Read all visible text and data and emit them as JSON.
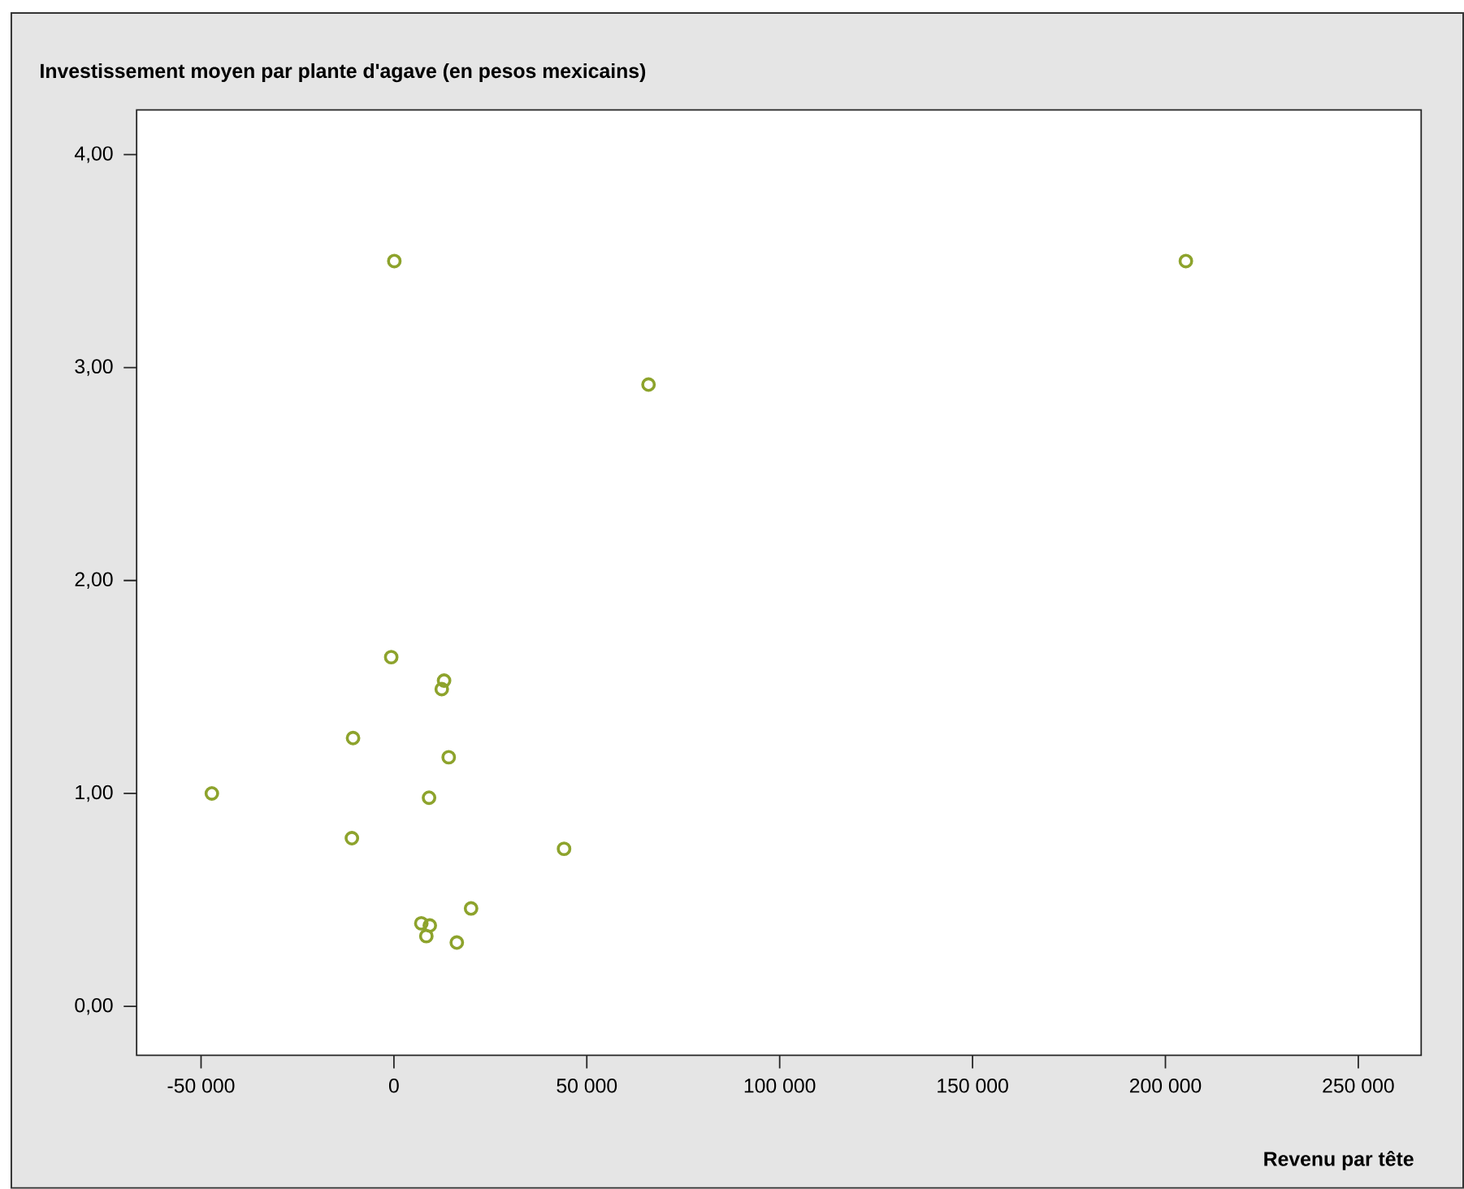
{
  "chart_data": {
    "type": "scatter",
    "title": "Investissement moyen par plante d'agave (en pesos mexicains)",
    "xlabel": "Revenu par tête",
    "x": [
      -47200,
      -700,
      13000,
      12400,
      -10600,
      14200,
      9100,
      -10900,
      44100,
      20000,
      7100,
      9300,
      8400,
      16300,
      100,
      66000,
      205300
    ],
    "values": [
      1.0,
      1.64,
      1.53,
      1.49,
      1.26,
      1.17,
      0.98,
      0.79,
      0.74,
      0.46,
      0.39,
      0.38,
      0.33,
      0.3,
      3.5,
      2.92,
      3.5
    ],
    "color": "#8da32c",
    "marker": "circle",
    "xlim": [
      -66700,
      266300
    ],
    "ylim": [
      -0.23,
      4.21
    ],
    "xticks": [
      {
        "value": -50000,
        "label": "-50 000"
      },
      0,
      {
        "value": 50000,
        "label": "50 000"
      },
      {
        "value": 100000,
        "label": "100 000"
      },
      {
        "value": 150000,
        "label": "150 000"
      },
      {
        "value": 200000,
        "label": "200 000"
      },
      {
        "value": 250000,
        "label": "250 000"
      }
    ],
    "yticks": [
      {
        "value": 0,
        "label": "0,00"
      },
      {
        "value": 1,
        "label": "1,00"
      },
      {
        "value": 2,
        "label": "2,00"
      },
      {
        "value": 3,
        "label": "3,00"
      },
      {
        "value": 4,
        "label": "4,00"
      }
    ]
  }
}
